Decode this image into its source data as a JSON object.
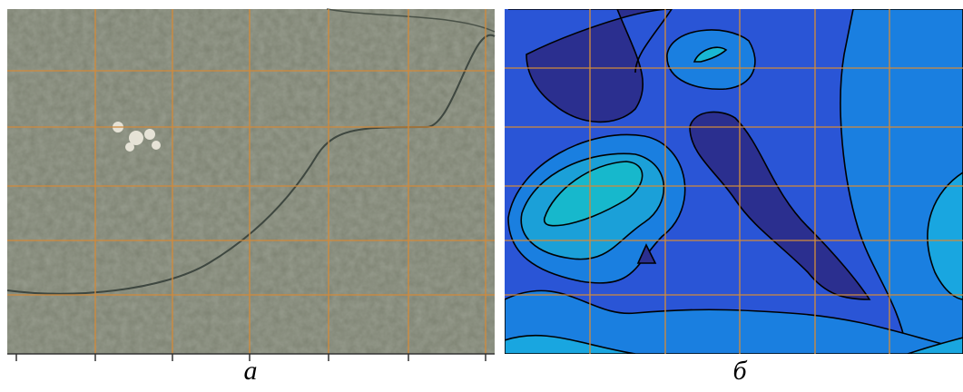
{
  "panels": [
    {
      "label": "а"
    },
    {
      "label": "б"
    }
  ]
}
